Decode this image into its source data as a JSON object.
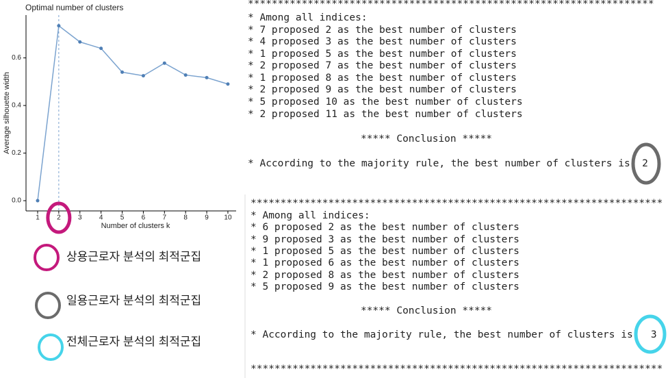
{
  "chart_data": {
    "type": "line",
    "title": "Optimal number of clusters",
    "x_label": "Number of clusters k",
    "y_label": "Average silhouette width",
    "x": [
      1,
      2,
      3,
      4,
      5,
      6,
      7,
      8,
      9,
      10
    ],
    "values": [
      0,
      0.735,
      0.667,
      0.64,
      0.54,
      0.525,
      0.578,
      0.528,
      0.517,
      0.49
    ],
    "color": "#7ba3cf",
    "xlim": [
      0.45,
      10.39
    ],
    "ylim": [
      -0.043,
      0.78
    ],
    "xticks": [
      1,
      2,
      3,
      4,
      5,
      6,
      7,
      8,
      9,
      10
    ],
    "yticks": [
      {
        "value": 0,
        "label": "0.0"
      },
      0.2,
      0.4,
      0.6
    ],
    "vline": 2
  },
  "console": [
    {
      "lines": [
        "********************************************************************",
        "* Among all indices:",
        "* 7 proposed 2 as the best number of clusters",
        "* 4 proposed 3 as the best number of clusters",
        "* 1 proposed 5 as the best number of clusters",
        "* 2 proposed 7 as the best number of clusters",
        "* 1 proposed 8 as the best number of clusters",
        "* 2 proposed 9 as the best number of clusters",
        "* 5 proposed 10 as the best number of clusters",
        "* 2 proposed 11 as the best number of clusters",
        "***** Conclusion *****",
        "* According to the majority rule, the best number of clusters is  2"
      ]
    },
    {
      "lines": [
        "*********************************************************************",
        "* Among all indices:",
        "* 6 proposed 2 as the best number of clusters",
        "* 9 proposed 3 as the best number of clusters",
        "* 1 proposed 5 as the best number of clusters",
        "* 1 proposed 6 as the best number of clusters",
        "* 2 proposed 8 as the best number of clusters",
        "* 5 proposed 9 as the best number of clusters",
        "***** Conclusion *****",
        "* According to the majority rule, the best number of clusters is   3",
        "*********************************************************************"
      ]
    }
  ],
  "legend": [
    {
      "label": "상용근로자 분석의 최적군집",
      "color": "#c4197c"
    },
    {
      "label": "일용근로자 분석의 최적군집",
      "color": "#6b6b6b"
    },
    {
      "label": "전체근로자 분석의 최적군집",
      "color": "#46d4ea"
    }
  ]
}
